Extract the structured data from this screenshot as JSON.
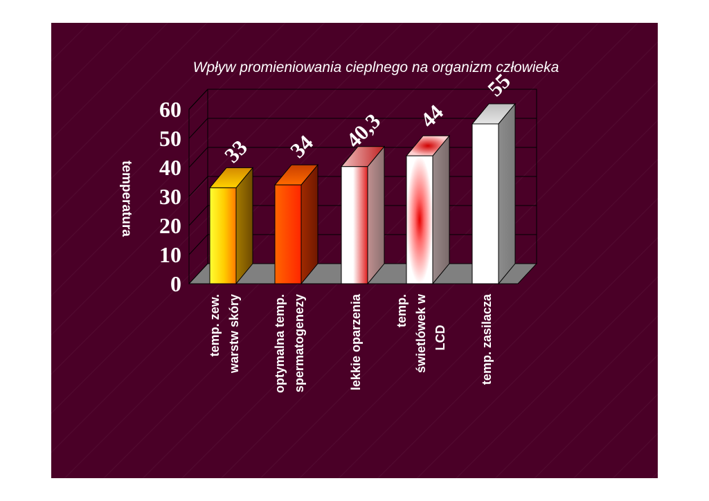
{
  "chart_data": {
    "type": "bar",
    "title": "Wpływ promieniowania cieplnego na organizm człowieka",
    "ylabel": "temperatura",
    "xlabel": "",
    "ylim": [
      0,
      60
    ],
    "yticks": [
      "0",
      "10",
      "20",
      "30",
      "40",
      "50",
      "60"
    ],
    "categories": [
      [
        "temp. zew.",
        "warstw skóry"
      ],
      [
        "optymalna temp.",
        "spermatogenezy"
      ],
      [
        "lekkie oparzenia"
      ],
      [
        "temp.",
        "świetlówek w",
        "LCD"
      ],
      [
        "temp. zasilacza"
      ]
    ],
    "values": [
      33,
      34,
      40.3,
      44,
      55
    ],
    "data_labels": [
      "33",
      "34",
      "40,3",
      "44",
      "55"
    ],
    "grid": true,
    "three_d": true,
    "bar_styles": [
      "yellow-to-orange",
      "orange-to-red",
      "red-to-white",
      "white-red-glow",
      "white"
    ]
  },
  "colors": {
    "slide_background": "#4a0027",
    "floor": "#808080",
    "grid_line": "#000000",
    "text": "#ffffff"
  }
}
